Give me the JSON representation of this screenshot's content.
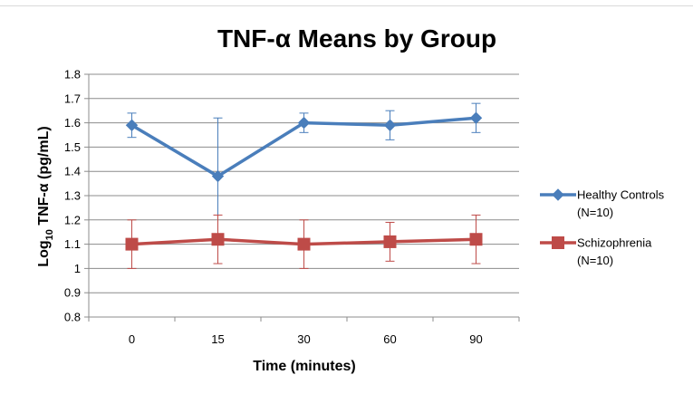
{
  "chart_data": {
    "type": "line",
    "title": "TNF-α Means by Group",
    "xlabel": "Time (minutes)",
    "ylabel_prefix": "Log",
    "ylabel_sub": "10",
    "ylabel_suffix": " TNF-α  (pg/mL)",
    "categories": [
      "0",
      "15",
      "30",
      "60",
      "90"
    ],
    "ylim": [
      0.8,
      1.8
    ],
    "yticks": [
      0.8,
      0.9,
      1,
      1.1,
      1.2,
      1.3,
      1.4,
      1.5,
      1.6,
      1.7,
      1.8
    ],
    "grid": "horizontal",
    "legend_position": "right",
    "series": [
      {
        "name_line1": "Healthy Controls",
        "name_line2": "(N=10)",
        "marker": "diamond",
        "color": "#4a7ebb",
        "values": [
          1.59,
          1.38,
          1.6,
          1.59,
          1.62
        ],
        "error": [
          0.05,
          0.24,
          0.04,
          0.06,
          0.06
        ]
      },
      {
        "name_line1": "Schizophrenia",
        "name_line2": "(N=10)",
        "marker": "square",
        "color": "#be4b48",
        "values": [
          1.1,
          1.12,
          1.1,
          1.11,
          1.12
        ],
        "error": [
          0.1,
          0.1,
          0.1,
          0.08,
          0.1
        ]
      }
    ]
  }
}
